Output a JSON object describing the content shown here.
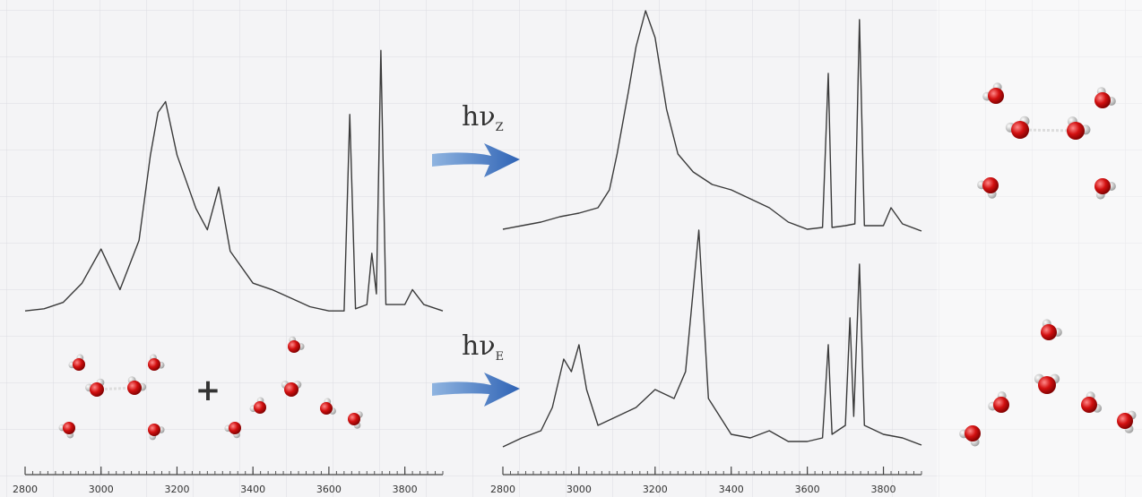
{
  "chart_data": [
    {
      "type": "line",
      "xlim": [
        2800,
        3900
      ],
      "ylim": [
        0,
        1.3
      ],
      "xticks": [
        2800,
        3000,
        3200,
        3400,
        3600,
        3800
      ],
      "xminor_step": 20,
      "annotation": "+",
      "x": [
        2800,
        2850,
        2900,
        2950,
        3000,
        3050,
        3100,
        3130,
        3150,
        3170,
        3200,
        3250,
        3280,
        3310,
        3340,
        3400,
        3450,
        3500,
        3550,
        3600,
        3640,
        3655,
        3670,
        3700,
        3713,
        3725,
        3737,
        3750,
        3800,
        3820,
        3850,
        3900
      ],
      "series": [
        {
          "color": "#3a3a3a",
          "values": [
            0.02,
            0.03,
            0.06,
            0.15,
            0.31,
            0.12,
            0.35,
            0.75,
            0.95,
            1.0,
            0.75,
            0.5,
            0.4,
            0.6,
            0.3,
            0.15,
            0.12,
            0.08,
            0.04,
            0.02,
            0.02,
            0.94,
            0.03,
            0.05,
            0.29,
            0.1,
            1.24,
            0.05,
            0.05,
            0.12,
            0.05,
            0.02
          ]
        }
      ]
    },
    {
      "type": "line",
      "xlim": [
        2800,
        3900
      ],
      "ylim": [
        0,
        1.3
      ],
      "annotation": {
        "text": "hν",
        "subscript": "Z"
      },
      "x": [
        2800,
        2850,
        2900,
        2950,
        3000,
        3050,
        3080,
        3100,
        3130,
        3150,
        3175,
        3200,
        3230,
        3260,
        3300,
        3350,
        3400,
        3450,
        3500,
        3550,
        3600,
        3640,
        3655,
        3665,
        3700,
        3725,
        3737,
        3750,
        3800,
        3820,
        3850,
        3900
      ],
      "series": [
        {
          "color": "#3a3a3a",
          "values": [
            0.03,
            0.05,
            0.07,
            0.1,
            0.12,
            0.15,
            0.25,
            0.45,
            0.8,
            1.05,
            1.25,
            1.1,
            0.7,
            0.45,
            0.35,
            0.28,
            0.25,
            0.2,
            0.15,
            0.07,
            0.03,
            0.04,
            0.9,
            0.04,
            0.05,
            0.06,
            1.2,
            0.05,
            0.05,
            0.15,
            0.06,
            0.02
          ]
        }
      ]
    },
    {
      "type": "line",
      "xlim": [
        2800,
        3900
      ],
      "ylim": [
        0,
        1.3
      ],
      "xticks": [
        2800,
        3000,
        3200,
        3400,
        3600,
        3800
      ],
      "xminor_step": 20,
      "annotation": {
        "text": "hν",
        "subscript": "E"
      },
      "x": [
        2800,
        2850,
        2900,
        2930,
        2960,
        2980,
        3000,
        3020,
        3050,
        3100,
        3150,
        3200,
        3250,
        3280,
        3315,
        3340,
        3400,
        3450,
        3500,
        3550,
        3600,
        3640,
        3655,
        3665,
        3700,
        3712,
        3722,
        3737,
        3750,
        3800,
        3850,
        3900
      ],
      "series": [
        {
          "color": "#3a3a3a",
          "values": [
            0.03,
            0.08,
            0.12,
            0.25,
            0.52,
            0.45,
            0.6,
            0.35,
            0.15,
            0.2,
            0.25,
            0.35,
            0.3,
            0.45,
            1.24,
            0.3,
            0.1,
            0.08,
            0.12,
            0.06,
            0.06,
            0.08,
            0.6,
            0.1,
            0.15,
            0.75,
            0.2,
            1.05,
            0.15,
            0.1,
            0.08,
            0.04
          ]
        }
      ]
    }
  ]
}
